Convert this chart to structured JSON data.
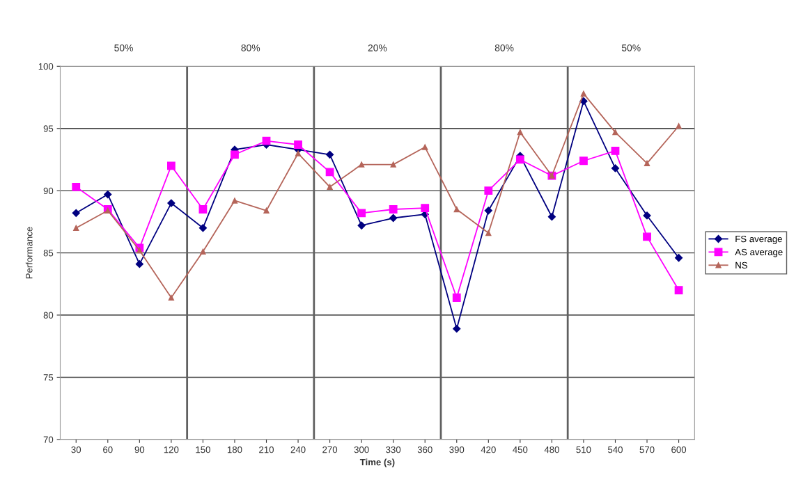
{
  "chart_data": {
    "type": "line",
    "xlabel": "Time (s)",
    "ylabel": "Performance",
    "x": [
      30,
      60,
      90,
      120,
      150,
      180,
      210,
      240,
      270,
      300,
      330,
      360,
      390,
      420,
      450,
      480,
      510,
      540,
      570,
      600
    ],
    "xlim": [
      15,
      615
    ],
    "xticks": [
      30,
      60,
      90,
      120,
      150,
      180,
      210,
      240,
      270,
      300,
      330,
      360,
      390,
      420,
      450,
      480,
      510,
      540,
      570,
      600
    ],
    "ylim": [
      70,
      100
    ],
    "yticks": [
      70,
      75,
      80,
      85,
      90,
      95,
      100
    ],
    "grid": "y",
    "legend": "right",
    "series": [
      {
        "name": "FS average",
        "color": "#000080",
        "marker": "diamond",
        "values": [
          88.2,
          89.7,
          84.1,
          89.0,
          87.0,
          93.3,
          93.7,
          93.3,
          92.9,
          87.2,
          87.8,
          88.1,
          78.9,
          88.4,
          92.8,
          87.9,
          97.2,
          91.8,
          88.0,
          84.6
        ]
      },
      {
        "name": "AS average",
        "color": "#ff00ff",
        "marker": "square",
        "values": [
          90.3,
          88.5,
          85.4,
          92.0,
          88.5,
          92.9,
          94.0,
          93.7,
          91.5,
          88.2,
          88.5,
          88.6,
          81.4,
          90.0,
          92.5,
          91.2,
          92.4,
          93.2,
          86.3,
          82.0
        ]
      },
      {
        "name": "NS",
        "color": "#b5655a",
        "marker": "triangle",
        "values": [
          87.0,
          88.4,
          85.2,
          81.4,
          85.1,
          89.2,
          88.4,
          93.0,
          90.3,
          92.1,
          92.1,
          93.5,
          88.5,
          86.6,
          94.7,
          91.2,
          97.8,
          94.7,
          92.2,
          95.2
        ]
      }
    ],
    "ref_lines": [
      {
        "axis": "x",
        "value": 135,
        "color": "#606060"
      },
      {
        "axis": "x",
        "value": 255,
        "color": "#606060"
      },
      {
        "axis": "x",
        "value": 375,
        "color": "#606060"
      },
      {
        "axis": "x",
        "value": 495,
        "color": "#606060"
      }
    ],
    "annotations": [
      "50%",
      "80%",
      "20%",
      "80%",
      "50%"
    ]
  }
}
